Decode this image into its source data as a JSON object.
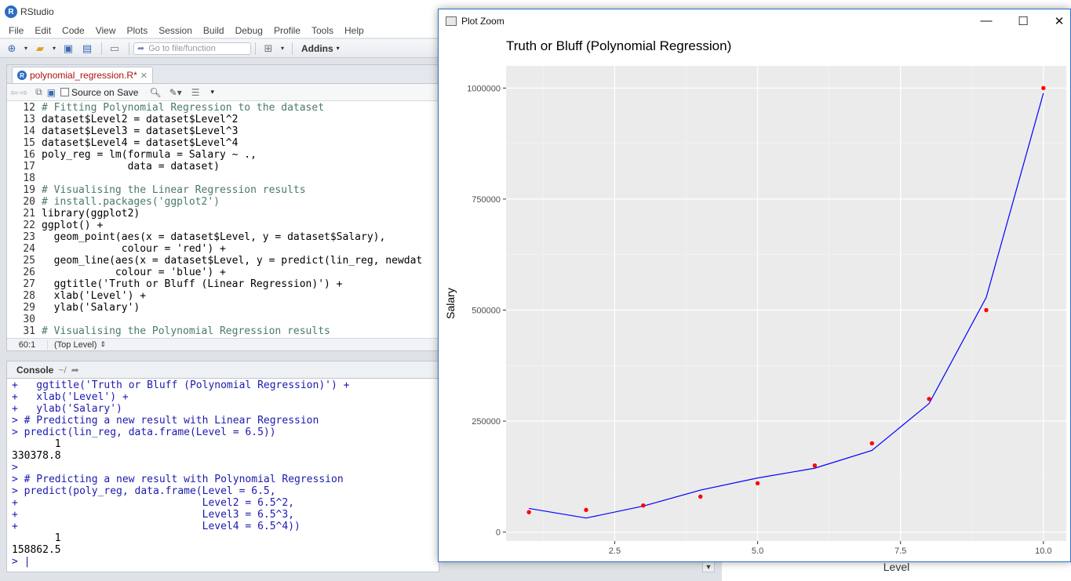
{
  "app": {
    "title": "RStudio"
  },
  "menu": [
    "File",
    "Edit",
    "Code",
    "View",
    "Plots",
    "Session",
    "Build",
    "Debug",
    "Profile",
    "Tools",
    "Help"
  ],
  "toolbar": {
    "goto_placeholder": "Go to file/function",
    "addins_label": "Addins"
  },
  "editor": {
    "tab_label": "polynomial_regression.R*",
    "source_on_save": "Source on Save",
    "cursor_pos": "60:1",
    "scope": "(Top Level)",
    "lines": [
      {
        "n": "12",
        "text": "# Fitting Polynomial Regression to the dataset",
        "kind": "cmt"
      },
      {
        "n": "13",
        "text": "dataset$Level2 = dataset$Level^2",
        "kind": "code"
      },
      {
        "n": "14",
        "text": "dataset$Level3 = dataset$Level^3",
        "kind": "code"
      },
      {
        "n": "15",
        "text": "dataset$Level4 = dataset$Level^4",
        "kind": "code"
      },
      {
        "n": "16",
        "text": "poly_reg = lm(formula = Salary ~ .,",
        "kind": "code"
      },
      {
        "n": "17",
        "text": "              data = dataset)",
        "kind": "code"
      },
      {
        "n": "18",
        "text": "",
        "kind": "code"
      },
      {
        "n": "19",
        "text": "# Visualising the Linear Regression results",
        "kind": "cmt"
      },
      {
        "n": "20",
        "text": "# install.packages('ggplot2')",
        "kind": "cmt"
      },
      {
        "n": "21",
        "text": "library(ggplot2)",
        "kind": "code"
      },
      {
        "n": "22",
        "text": "ggplot() +",
        "kind": "code"
      },
      {
        "n": "23",
        "text": "  geom_point(aes(x = dataset$Level, y = dataset$Salary),",
        "kind": "code"
      },
      {
        "n": "24",
        "text": "             colour = 'red') +",
        "kind": "code"
      },
      {
        "n": "25",
        "text": "  geom_line(aes(x = dataset$Level, y = predict(lin_reg, newdat",
        "kind": "code"
      },
      {
        "n": "26",
        "text": "            colour = 'blue') +",
        "kind": "code"
      },
      {
        "n": "27",
        "text": "  ggtitle('Truth or Bluff (Linear Regression)') +",
        "kind": "code"
      },
      {
        "n": "28",
        "text": "  xlab('Level') +",
        "kind": "code"
      },
      {
        "n": "29",
        "text": "  ylab('Salary')",
        "kind": "code"
      },
      {
        "n": "30",
        "text": "",
        "kind": "code"
      },
      {
        "n": "31",
        "text": "# Visualising the Polynomial Regression results",
        "kind": "cmt"
      }
    ]
  },
  "console": {
    "title": "Console",
    "path": "~/",
    "lines": [
      {
        "text": "+   ggtitle('Truth or Bluff (Polynomial Regression)') +",
        "kind": "in"
      },
      {
        "text": "+   xlab('Level') +",
        "kind": "in"
      },
      {
        "text": "+   ylab('Salary')",
        "kind": "in"
      },
      {
        "text": "> # Predicting a new result with Linear Regression",
        "kind": "in"
      },
      {
        "text": "> predict(lin_reg, data.frame(Level = 6.5))",
        "kind": "in"
      },
      {
        "text": "       1",
        "kind": "out"
      },
      {
        "text": "330378.8",
        "kind": "out"
      },
      {
        "text": ">",
        "kind": "in"
      },
      {
        "text": "> # Predicting a new result with Polynomial Regression",
        "kind": "in"
      },
      {
        "text": "> predict(poly_reg, data.frame(Level = 6.5,",
        "kind": "in"
      },
      {
        "text": "+                              Level2 = 6.5^2,",
        "kind": "in"
      },
      {
        "text": "+                              Level3 = 6.5^3,",
        "kind": "in"
      },
      {
        "text": "+                              Level4 = 6.5^4))",
        "kind": "in"
      },
      {
        "text": "       1",
        "kind": "out"
      },
      {
        "text": "158862.5",
        "kind": "out"
      },
      {
        "text": "> |",
        "kind": "in"
      }
    ]
  },
  "behind": {
    "xlabel": "Level"
  },
  "plot_window": {
    "title": "Plot Zoom"
  },
  "chart_data": {
    "type": "scatter",
    "title": "Truth or Bluff (Polynomial Regression)",
    "xlabel": "Level",
    "ylabel": "Salary",
    "xlim": [
      0.6,
      10.4
    ],
    "ylim": [
      -20000,
      1050000
    ],
    "xticks": [
      2.5,
      5.0,
      7.5,
      10.0
    ],
    "xtick_labels": [
      "2.5",
      "5.0",
      "7.5",
      "10.0"
    ],
    "yticks": [
      0,
      250000,
      500000,
      750000,
      1000000
    ],
    "ytick_labels": [
      "0",
      "250000",
      "500000",
      "750000",
      "1000000"
    ],
    "grid": true,
    "points": {
      "name": "",
      "color": "#ff0000",
      "x": [
        1,
        2,
        3,
        4,
        5,
        6,
        7,
        8,
        9,
        10
      ],
      "y": [
        45000,
        50000,
        60000,
        80000,
        110000,
        150000,
        200000,
        300000,
        500000,
        1000000
      ]
    },
    "line": {
      "name": "",
      "color": "#0000ff",
      "x": [
        1,
        2,
        3,
        4,
        5,
        6,
        7,
        8,
        9,
        10
      ],
      "y": [
        53357,
        31760,
        58642,
        94632,
        121876,
        143993,
        184054,
        289604,
        528632,
        988603
      ]
    }
  }
}
